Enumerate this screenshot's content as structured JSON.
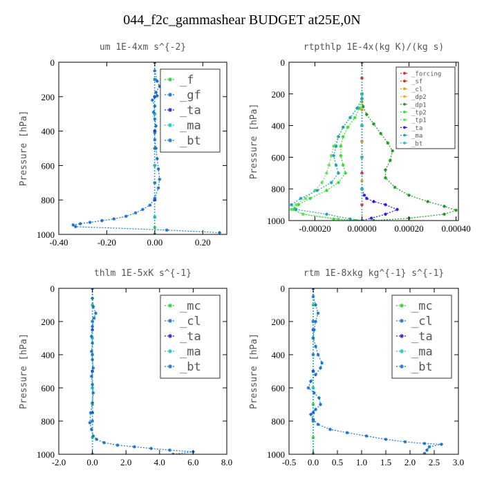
{
  "page": {
    "title": "044_f2c_gammashear  BUDGET at25E,0N"
  },
  "chart_data": [
    {
      "type": "line",
      "title": "um   1E-4xm  s^{-2}",
      "ylabel": "Pressure [hPa]",
      "xlim": [
        -0.4,
        0.3
      ],
      "ylim": [
        1000,
        0
      ],
      "xticks": [
        "-0.40",
        "-0.20",
        "0.00",
        "0.20"
      ],
      "xtick_values": [
        -0.4,
        -0.2,
        0.0,
        0.2
      ],
      "yticks": [
        "0",
        "200",
        "400",
        "600",
        "800",
        "1000"
      ],
      "ytick_values": [
        0,
        200,
        400,
        600,
        800,
        1000
      ],
      "legend": {
        "position": "top-right",
        "size": "large"
      },
      "series": [
        {
          "name": "_f",
          "color": "#33cc33",
          "x": [
            0.0,
            0.0,
            0.0,
            0.0,
            0.0,
            0.0,
            0.0,
            0.0,
            0.0,
            0.0,
            0.0,
            0.0
          ],
          "y": [
            0,
            100,
            200,
            300,
            400,
            500,
            600,
            700,
            800,
            900,
            960,
            1000
          ]
        },
        {
          "name": "_gf",
          "color": "#1e6fc8",
          "x": [
            0.0,
            0.0,
            0.0,
            0.0,
            0.0,
            0.0,
            0.0,
            0.0,
            0.0,
            0.0
          ],
          "y": [
            0,
            100,
            200,
            300,
            400,
            500,
            600,
            700,
            800,
            1000
          ]
        },
        {
          "name": "_ta",
          "color": "#2020dd",
          "x": [
            0.0,
            0.0,
            0.0,
            0.0,
            0.0,
            0.0,
            0.0
          ],
          "y": [
            0,
            200,
            400,
            600,
            800,
            900,
            1000
          ]
        },
        {
          "name": "_ma",
          "color": "#19c3c3",
          "x": [
            0.0,
            0.0,
            0.0,
            0.0,
            0.0
          ],
          "y": [
            0,
            300,
            600,
            900,
            1000
          ]
        },
        {
          "name": "_bt",
          "color": "#1873d0",
          "x": [
            0.0,
            0.0,
            0.01,
            0.02,
            0.005,
            0.01,
            -0.01,
            0.0,
            -0.005,
            0.0,
            0.005,
            0.0,
            0.0,
            0.005,
            0.01,
            0.015,
            0.02,
            0.015,
            0.0,
            -0.02,
            -0.05,
            -0.08,
            -0.12,
            -0.17,
            -0.22,
            -0.27,
            -0.31,
            -0.34,
            -0.33,
            0.05,
            0.27
          ],
          "y": [
            0,
            50,
            110,
            140,
            175,
            195,
            220,
            255,
            290,
            330,
            370,
            410,
            450,
            500,
            560,
            620,
            680,
            730,
            790,
            830,
            855,
            875,
            895,
            910,
            920,
            930,
            938,
            945,
            955,
            975,
            990
          ]
        }
      ]
    },
    {
      "type": "line",
      "title": "rtpthlp   1E-4x(kg K)/(kg s)",
      "ylabel": "Pressure [hPa]",
      "xlim": [
        -0.00031,
        0.00041
      ],
      "ylim": [
        1000,
        0
      ],
      "xticks": [
        "-0.00020",
        "0.00000",
        "0.00020",
        "0.00040"
      ],
      "xtick_values": [
        -0.0002,
        0.0,
        0.0002,
        0.0004
      ],
      "yticks": [
        "0",
        "200",
        "400",
        "600",
        "800",
        "1000"
      ],
      "ytick_values": [
        0,
        200,
        400,
        600,
        800,
        1000
      ],
      "legend": {
        "position": "top-right",
        "size": "small"
      },
      "series": [
        {
          "name": "_forcing",
          "color": "#dd2020",
          "x": [
            0.0,
            0.0,
            0.0,
            0.0,
            0.0,
            0.0,
            0.0,
            0.0,
            0.0,
            0.0,
            0.0
          ],
          "y": [
            0,
            100,
            200,
            300,
            400,
            500,
            600,
            700,
            800,
            900,
            1000
          ]
        },
        {
          "name": "_sf",
          "color": "#dd2020",
          "x": [
            0.0,
            0.0,
            0.0,
            0.0,
            0.0,
            0.0
          ],
          "y": [
            0,
            200,
            400,
            600,
            800,
            1000
          ]
        },
        {
          "name": "_cl",
          "color": "#e0a020",
          "x": [
            0.0,
            0.0,
            0.0,
            0.0,
            0.0
          ],
          "y": [
            0,
            250,
            500,
            750,
            1000
          ]
        },
        {
          "name": "_dp2",
          "color": "#ddbb20",
          "x": [
            0.0,
            0.0,
            0.0,
            0.0
          ],
          "y": [
            0,
            300,
            600,
            1000
          ]
        },
        {
          "name": "_dp1",
          "color": "#1e9a1e",
          "x": [
            0.0,
            5e-06,
            2e-05,
            5e-05,
            8e-05,
            0.00011,
            0.00013,
            0.00012,
            0.0001,
            0.0001,
            0.00014,
            0.0002,
            0.00028,
            0.00035,
            0.0004,
            0.00035,
            0.0002,
            5e-05
          ],
          "y": [
            230,
            280,
            330,
            390,
            450,
            510,
            560,
            620,
            680,
            730,
            790,
            840,
            880,
            910,
            935,
            960,
            985,
            1000
          ]
        },
        {
          "name": "_tp2",
          "color": "#33dd33",
          "x": [
            0.0,
            -1e-05,
            -3e-05,
            -6e-05,
            -8e-05,
            -9e-05,
            -9e-05,
            -8e-05,
            -7e-05,
            -0.0001,
            -0.00015,
            -0.00022,
            -0.00027,
            -0.00029,
            -0.00025,
            -0.00012,
            -3e-05
          ],
          "y": [
            230,
            290,
            350,
            410,
            470,
            530,
            590,
            650,
            700,
            760,
            810,
            860,
            900,
            930,
            960,
            990,
            1000
          ]
        },
        {
          "name": "_tp1",
          "color": "#66dd66",
          "x": [
            0.0,
            -2e-05,
            -5e-05,
            -8e-05,
            -0.0001,
            -0.00012,
            -0.00013,
            -0.00014,
            -0.00015,
            -0.00017,
            -0.0002,
            -0.00024,
            -0.00028,
            -0.0003,
            -0.00025,
            -0.0001,
            -2e-05
          ],
          "y": [
            230,
            290,
            350,
            410,
            470,
            530,
            590,
            650,
            700,
            760,
            810,
            860,
            900,
            930,
            960,
            990,
            1000
          ]
        },
        {
          "name": "_ta",
          "color": "#2020dd",
          "x": [
            0.0,
            0.0,
            0.0,
            0.0,
            0.0,
            1e-05,
            2e-05,
            5e-05,
            0.0001,
            0.00015,
            0.0001,
            4e-05,
            0.0
          ],
          "y": [
            0,
            200,
            400,
            600,
            800,
            840,
            860,
            880,
            900,
            930,
            960,
            985,
            1000
          ]
        },
        {
          "name": "_ma",
          "color": "#1fa0b0",
          "x": [
            0.0,
            -2e-05,
            -5e-05,
            -8e-05,
            -0.0001,
            -0.00011,
            -0.00012,
            -0.00011,
            -0.0001,
            -0.00013,
            -0.00019,
            -0.00026,
            -0.0003,
            -0.00028,
            -0.00015,
            -5e-05,
            0.0
          ],
          "y": [
            230,
            290,
            350,
            410,
            470,
            530,
            590,
            650,
            700,
            760,
            810,
            860,
            900,
            930,
            960,
            990,
            1000
          ]
        },
        {
          "name": "_bt",
          "color": "#19c3c3",
          "x": [
            0.0,
            0.0,
            0.0,
            0.0,
            0.0,
            0.0
          ],
          "y": [
            0,
            200,
            400,
            600,
            800,
            1000
          ]
        }
      ]
    },
    {
      "type": "line",
      "title": "thlm   1E-5xK  s^{-1}",
      "ylabel": "Pressure [hPa]",
      "xlim": [
        -2.0,
        8.0
      ],
      "ylim": [
        1000,
        0
      ],
      "xticks": [
        "-2.0",
        "0.0",
        "2.0",
        "4.0",
        "6.0",
        "8.0"
      ],
      "xtick_values": [
        -2,
        0,
        2,
        4,
        6,
        8
      ],
      "yticks": [
        "0",
        "200",
        "400",
        "600",
        "800",
        "1000"
      ],
      "ytick_values": [
        0,
        200,
        400,
        600,
        800,
        1000
      ],
      "legend": {
        "position": "top-right",
        "size": "large"
      },
      "series": [
        {
          "name": "_mc",
          "color": "#33cc33",
          "x": [
            0.0,
            0.0,
            0.0,
            0.0,
            0.0,
            0.0,
            0.0,
            0.0,
            0.0,
            0.0,
            0.0
          ],
          "y": [
            0,
            100,
            200,
            300,
            400,
            500,
            600,
            700,
            800,
            900,
            1000
          ]
        },
        {
          "name": "_cl",
          "color": "#1e6fc8",
          "x": [
            0.0,
            0.0,
            0.0,
            0.0,
            0.0,
            0.0
          ],
          "y": [
            0,
            200,
            400,
            600,
            800,
            1000
          ]
        },
        {
          "name": "_ta",
          "color": "#2020dd",
          "x": [
            0.0,
            0.0,
            0.0,
            0.0,
            0.0
          ],
          "y": [
            0,
            250,
            500,
            750,
            1000
          ]
        },
        {
          "name": "_ma",
          "color": "#19c3c3",
          "x": [
            0.0,
            0.0,
            0.0,
            0.0
          ],
          "y": [
            0,
            300,
            600,
            1000
          ]
        },
        {
          "name": "_bt",
          "color": "#1873d0",
          "x": [
            0.0,
            0.0,
            0.05,
            0.2,
            0.1,
            0.0,
            -0.05,
            0.0,
            -0.05,
            0.0,
            0.05,
            -0.05,
            0.0,
            0.05,
            0.0,
            -0.1,
            -0.15,
            -0.05,
            0.05,
            0.25,
            0.7,
            1.5,
            2.5,
            3.5,
            4.6,
            6.0,
            4.8
          ],
          "y": [
            0,
            60,
            110,
            150,
            180,
            230,
            290,
            330,
            380,
            430,
            480,
            530,
            580,
            630,
            690,
            750,
            810,
            850,
            890,
            910,
            930,
            945,
            955,
            965,
            975,
            985,
            1000
          ]
        }
      ]
    },
    {
      "type": "line",
      "title": "rtm   1E-8xkg  kg^{-1}  s^{-1}",
      "ylabel": "Pressure [hPa]",
      "xlim": [
        -0.5,
        3.0
      ],
      "ylim": [
        1000,
        0
      ],
      "xticks": [
        "-0.5",
        "0.0",
        "0.5",
        "1.0",
        "1.5",
        "2.0",
        "2.5",
        "3.0"
      ],
      "xtick_values": [
        -0.5,
        0,
        0.5,
        1.0,
        1.5,
        2.0,
        2.5,
        3.0
      ],
      "yticks": [
        "0",
        "200",
        "400",
        "600",
        "800",
        "1000"
      ],
      "ytick_values": [
        0,
        200,
        400,
        600,
        800,
        1000
      ],
      "legend": {
        "position": "top-right",
        "size": "large"
      },
      "series": [
        {
          "name": "_mc",
          "color": "#33cc33",
          "x": [
            0.0,
            0.0,
            0.0,
            0.0,
            0.0,
            0.0,
            0.0,
            0.0,
            0.0,
            0.0,
            0.0
          ],
          "y": [
            0,
            100,
            200,
            300,
            400,
            500,
            600,
            700,
            800,
            900,
            1000
          ]
        },
        {
          "name": "_cl",
          "color": "#1e6fc8",
          "x": [
            0.0,
            0.0,
            0.0,
            0.0,
            0.0,
            0.0
          ],
          "y": [
            0,
            200,
            400,
            600,
            800,
            1000
          ]
        },
        {
          "name": "_ta",
          "color": "#2020dd",
          "x": [
            0.0,
            0.0,
            0.0,
            0.0,
            0.0
          ],
          "y": [
            0,
            250,
            500,
            750,
            1000
          ]
        },
        {
          "name": "_ma",
          "color": "#19c3c3",
          "x": [
            0.0,
            0.0,
            0.0,
            0.0
          ],
          "y": [
            0,
            300,
            600,
            1000
          ]
        },
        {
          "name": "_bt",
          "color": "#1873d0",
          "x": [
            0.0,
            0.0,
            0.05,
            0.1,
            0.05,
            0.02,
            0.0,
            0.05,
            0.1,
            0.18,
            0.15,
            0.05,
            -0.05,
            -0.1,
            0.02,
            0.12,
            0.15,
            0.05,
            -0.05,
            0.0,
            0.1,
            0.35,
            0.7,
            1.1,
            1.5,
            1.9,
            2.3,
            2.65,
            2.4,
            2.35,
            2.3
          ],
          "y": [
            0,
            50,
            100,
            150,
            200,
            250,
            300,
            350,
            400,
            450,
            480,
            520,
            560,
            600,
            630,
            660,
            700,
            730,
            760,
            790,
            820,
            850,
            870,
            890,
            910,
            925,
            935,
            940,
            955,
            975,
            995
          ]
        }
      ]
    }
  ]
}
